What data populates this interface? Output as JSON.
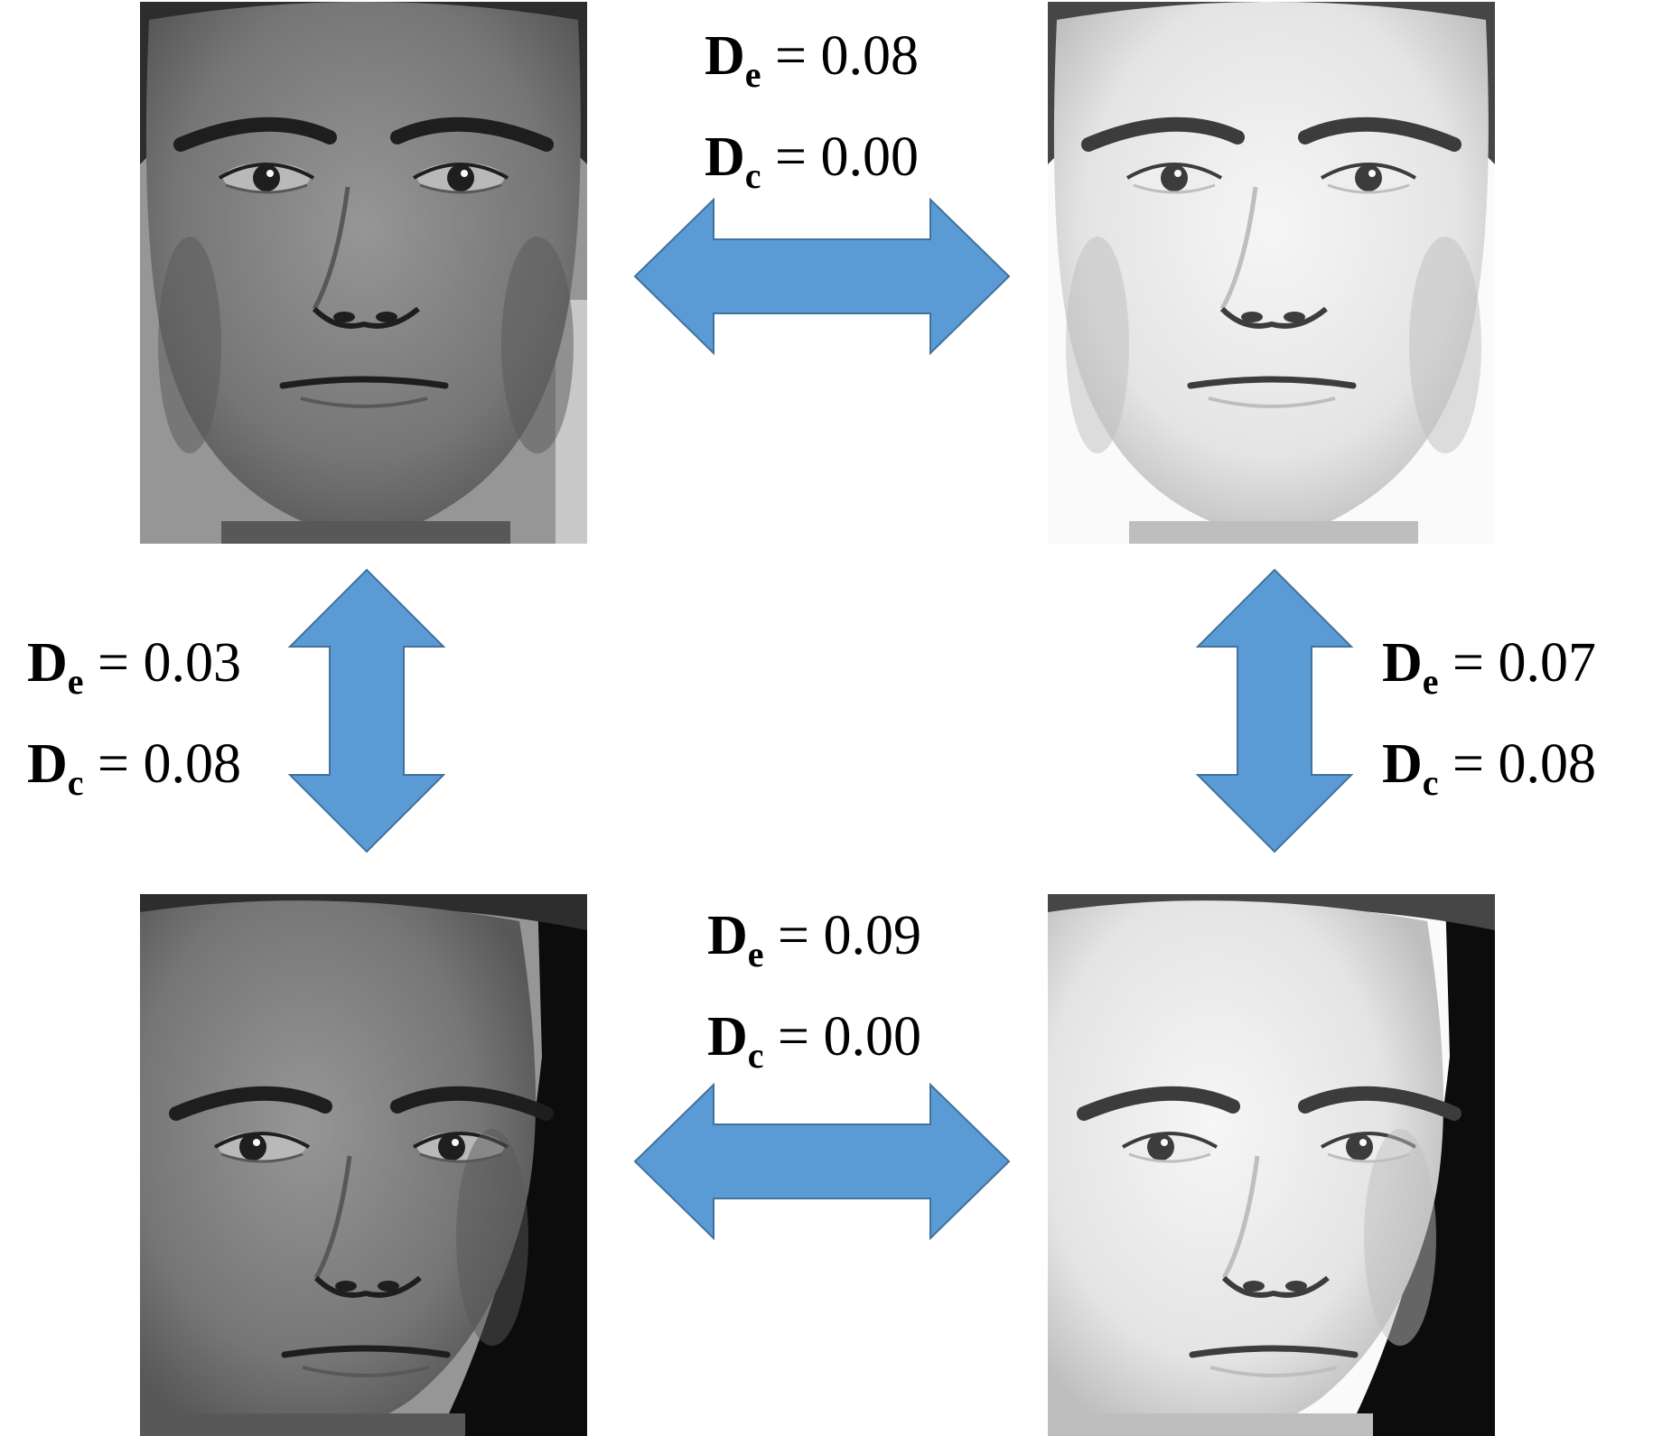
{
  "colors": {
    "arrow_fill": "#5b9bd5",
    "arrow_stroke": "#41719c",
    "background": "#ffffff"
  },
  "faces": [
    {
      "id": "top-left",
      "tone": "normal",
      "pose": "frontal",
      "icon": "face-photo"
    },
    {
      "id": "top-right",
      "tone": "bright",
      "pose": "frontal",
      "icon": "face-photo"
    },
    {
      "id": "bottom-left",
      "tone": "normal",
      "pose": "turned",
      "icon": "face-photo"
    },
    {
      "id": "bottom-right",
      "tone": "bright",
      "pose": "turned",
      "icon": "face-photo"
    }
  ],
  "pairs": {
    "top": {
      "de_symbol": "D",
      "de_sub": "e",
      "de_eq": "=",
      "de_value": "0.08",
      "dc_symbol": "D",
      "dc_sub": "c",
      "dc_eq": "=",
      "dc_value": "0.00"
    },
    "left": {
      "de_symbol": "D",
      "de_sub": "e",
      "de_eq": "=",
      "de_value": "0.03",
      "dc_symbol": "D",
      "dc_sub": "c",
      "dc_eq": "=",
      "dc_value": "0.08"
    },
    "right": {
      "de_symbol": "D",
      "de_sub": "e",
      "de_eq": "=",
      "de_value": "0.07",
      "dc_symbol": "D",
      "dc_sub": "c",
      "dc_eq": "=",
      "dc_value": "0.08"
    },
    "bottom": {
      "de_symbol": "D",
      "de_sub": "e",
      "de_eq": "=",
      "de_value": "0.09",
      "dc_symbol": "D",
      "dc_sub": "c",
      "dc_eq": "=",
      "dc_value": "0.00"
    }
  }
}
